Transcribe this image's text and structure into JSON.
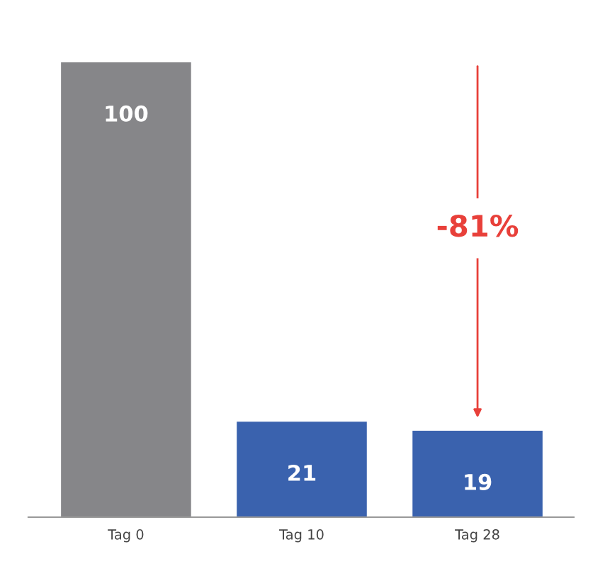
{
  "chart_data": {
    "type": "bar",
    "categories": [
      "Tag 0",
      "Tag 10",
      "Tag 28"
    ],
    "values": [
      100,
      21,
      19
    ],
    "colors": [
      "#868689",
      "#3a62ae",
      "#3a62ae"
    ],
    "data_labels": true,
    "annotations": [
      "-81%"
    ],
    "grid": false,
    "legend": false
  }
}
